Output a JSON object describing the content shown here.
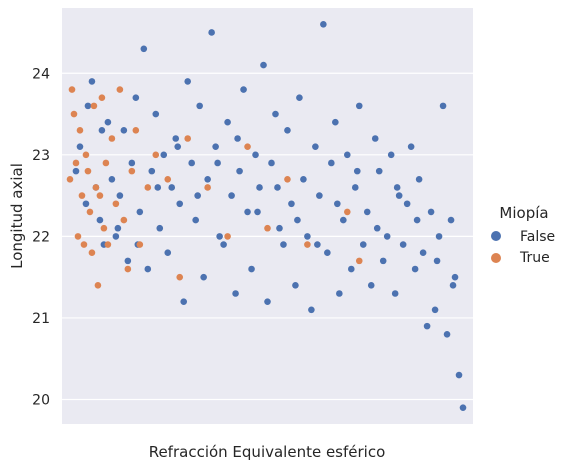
{
  "chart_data": {
    "type": "scatter",
    "xlabel": "Refracción Equivalente esférico",
    "ylabel": "Longitud axial",
    "ylim": [
      19.7,
      24.8
    ],
    "yticks": [
      20,
      21,
      22,
      23,
      24
    ],
    "grid": true,
    "legend": {
      "title": "Miopía",
      "placement": "right",
      "entries": [
        {
          "label": "False",
          "color": "#4c72b0"
        },
        {
          "label": "True",
          "color": "#dd8452"
        }
      ]
    },
    "series": [
      {
        "name": "False",
        "color": "#4c72b0",
        "points": [
          [
            0.02,
            22.8
          ],
          [
            0.03,
            23.1
          ],
          [
            0.05,
            23.6
          ],
          [
            0.06,
            23.9
          ],
          [
            0.07,
            22.6
          ],
          [
            0.08,
            22.2
          ],
          [
            0.09,
            21.9
          ],
          [
            0.1,
            23.4
          ],
          [
            0.11,
            22.7
          ],
          [
            0.12,
            22.0
          ],
          [
            0.13,
            22.5
          ],
          [
            0.14,
            23.3
          ],
          [
            0.15,
            21.7
          ],
          [
            0.16,
            22.9
          ],
          [
            0.17,
            23.7
          ],
          [
            0.18,
            22.3
          ],
          [
            0.19,
            24.3
          ],
          [
            0.2,
            21.6
          ],
          [
            0.21,
            22.8
          ],
          [
            0.22,
            23.5
          ],
          [
            0.23,
            22.1
          ],
          [
            0.24,
            23.0
          ],
          [
            0.25,
            21.8
          ],
          [
            0.26,
            22.6
          ],
          [
            0.27,
            23.2
          ],
          [
            0.28,
            22.4
          ],
          [
            0.29,
            21.2
          ],
          [
            0.3,
            23.9
          ],
          [
            0.31,
            22.9
          ],
          [
            0.32,
            22.2
          ],
          [
            0.33,
            23.6
          ],
          [
            0.34,
            21.5
          ],
          [
            0.35,
            22.7
          ],
          [
            0.36,
            24.5
          ],
          [
            0.37,
            23.1
          ],
          [
            0.38,
            22.0
          ],
          [
            0.39,
            21.9
          ],
          [
            0.4,
            23.4
          ],
          [
            0.41,
            22.5
          ],
          [
            0.42,
            21.3
          ],
          [
            0.43,
            22.8
          ],
          [
            0.44,
            23.8
          ],
          [
            0.45,
            22.3
          ],
          [
            0.46,
            21.6
          ],
          [
            0.47,
            23.0
          ],
          [
            0.48,
            22.6
          ],
          [
            0.49,
            24.1
          ],
          [
            0.5,
            21.2
          ],
          [
            0.51,
            22.9
          ],
          [
            0.52,
            23.5
          ],
          [
            0.53,
            22.1
          ],
          [
            0.54,
            21.9
          ],
          [
            0.55,
            23.3
          ],
          [
            0.56,
            22.4
          ],
          [
            0.57,
            21.4
          ],
          [
            0.58,
            23.7
          ],
          [
            0.59,
            22.7
          ],
          [
            0.6,
            22.0
          ],
          [
            0.61,
            21.1
          ],
          [
            0.62,
            23.1
          ],
          [
            0.63,
            22.5
          ],
          [
            0.64,
            24.6
          ],
          [
            0.65,
            21.8
          ],
          [
            0.66,
            22.9
          ],
          [
            0.67,
            23.4
          ],
          [
            0.68,
            21.3
          ],
          [
            0.69,
            22.2
          ],
          [
            0.7,
            23.0
          ],
          [
            0.71,
            21.6
          ],
          [
            0.72,
            22.6
          ],
          [
            0.73,
            23.6
          ],
          [
            0.74,
            21.9
          ],
          [
            0.75,
            22.3
          ],
          [
            0.76,
            21.4
          ],
          [
            0.77,
            23.2
          ],
          [
            0.78,
            22.8
          ],
          [
            0.79,
            21.7
          ],
          [
            0.8,
            22.0
          ],
          [
            0.81,
            23.0
          ],
          [
            0.82,
            21.3
          ],
          [
            0.83,
            22.5
          ],
          [
            0.84,
            21.9
          ],
          [
            0.85,
            22.4
          ],
          [
            0.86,
            23.1
          ],
          [
            0.87,
            21.6
          ],
          [
            0.88,
            22.7
          ],
          [
            0.89,
            21.8
          ],
          [
            0.9,
            20.9
          ],
          [
            0.91,
            22.3
          ],
          [
            0.92,
            21.1
          ],
          [
            0.93,
            22.0
          ],
          [
            0.94,
            23.6
          ],
          [
            0.95,
            20.8
          ],
          [
            0.96,
            22.2
          ],
          [
            0.97,
            21.5
          ],
          [
            0.98,
            20.3
          ],
          [
            0.99,
            19.9
          ],
          [
            0.045,
            22.4
          ],
          [
            0.085,
            23.3
          ],
          [
            0.125,
            22.1
          ],
          [
            0.175,
            21.9
          ],
          [
            0.225,
            22.6
          ],
          [
            0.275,
            23.1
          ],
          [
            0.325,
            22.5
          ],
          [
            0.375,
            22.9
          ],
          [
            0.425,
            23.2
          ],
          [
            0.475,
            22.3
          ],
          [
            0.525,
            22.6
          ],
          [
            0.575,
            22.2
          ],
          [
            0.625,
            21.9
          ],
          [
            0.675,
            22.4
          ],
          [
            0.725,
            22.8
          ],
          [
            0.775,
            22.1
          ],
          [
            0.825,
            22.6
          ],
          [
            0.875,
            22.2
          ],
          [
            0.925,
            21.7
          ],
          [
            0.965,
            21.4
          ]
        ]
      },
      {
        "name": "True",
        "color": "#dd8452",
        "points": [
          [
            0.005,
            22.7
          ],
          [
            0.01,
            23.8
          ],
          [
            0.015,
            23.5
          ],
          [
            0.02,
            22.9
          ],
          [
            0.025,
            22.0
          ],
          [
            0.03,
            23.3
          ],
          [
            0.035,
            22.5
          ],
          [
            0.04,
            21.9
          ],
          [
            0.045,
            23.0
          ],
          [
            0.05,
            22.8
          ],
          [
            0.055,
            22.3
          ],
          [
            0.06,
            21.8
          ],
          [
            0.065,
            23.6
          ],
          [
            0.07,
            22.6
          ],
          [
            0.075,
            21.4
          ],
          [
            0.08,
            22.5
          ],
          [
            0.085,
            23.7
          ],
          [
            0.09,
            22.1
          ],
          [
            0.095,
            22.9
          ],
          [
            0.1,
            21.9
          ],
          [
            0.11,
            23.2
          ],
          [
            0.12,
            22.4
          ],
          [
            0.13,
            23.8
          ],
          [
            0.14,
            22.2
          ],
          [
            0.15,
            21.6
          ],
          [
            0.16,
            22.8
          ],
          [
            0.17,
            23.3
          ],
          [
            0.18,
            21.9
          ],
          [
            0.2,
            22.6
          ],
          [
            0.22,
            23.0
          ],
          [
            0.25,
            22.7
          ],
          [
            0.28,
            21.5
          ],
          [
            0.3,
            23.2
          ],
          [
            0.35,
            22.6
          ],
          [
            0.4,
            22.0
          ],
          [
            0.45,
            23.1
          ],
          [
            0.5,
            22.1
          ],
          [
            0.55,
            22.7
          ],
          [
            0.6,
            21.9
          ],
          [
            0.7,
            22.3
          ],
          [
            0.73,
            21.7
          ]
        ]
      }
    ]
  }
}
